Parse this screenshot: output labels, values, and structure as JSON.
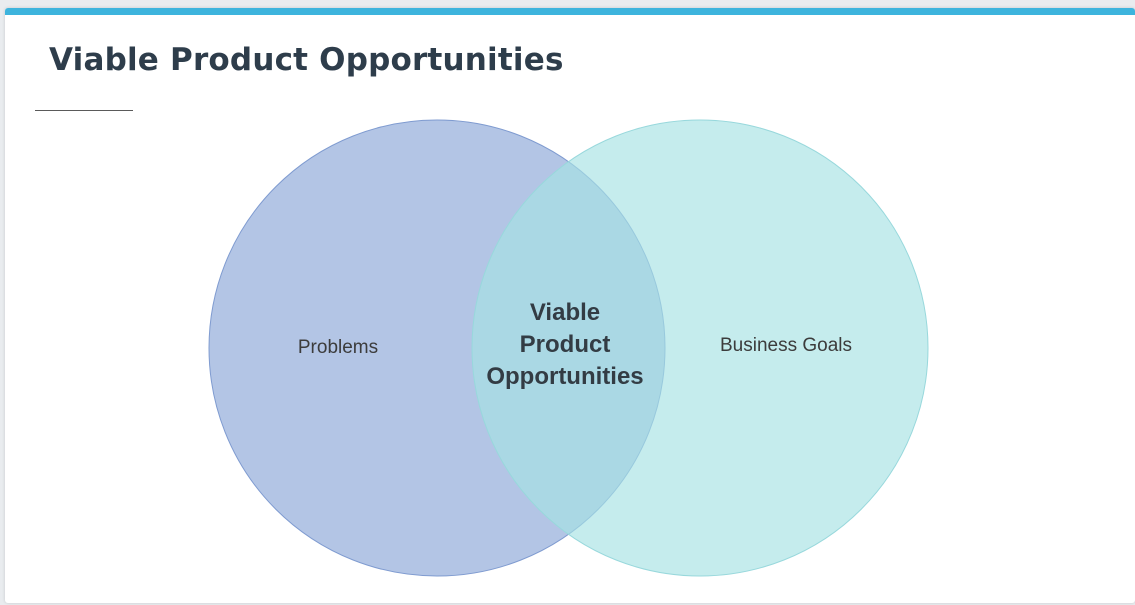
{
  "slide": {
    "title": "Viable Product Opportunities"
  },
  "venn": {
    "left_label": "Problems",
    "right_label": "Business Goals",
    "center_label_lines": [
      "Viable",
      "Product",
      "Opportunities"
    ],
    "colors": {
      "left_circle": "#8fa9d9",
      "right_circle": "#a6e2e4",
      "accent_bar": "#3db4dd",
      "title_text": "#2e3d4b"
    }
  }
}
